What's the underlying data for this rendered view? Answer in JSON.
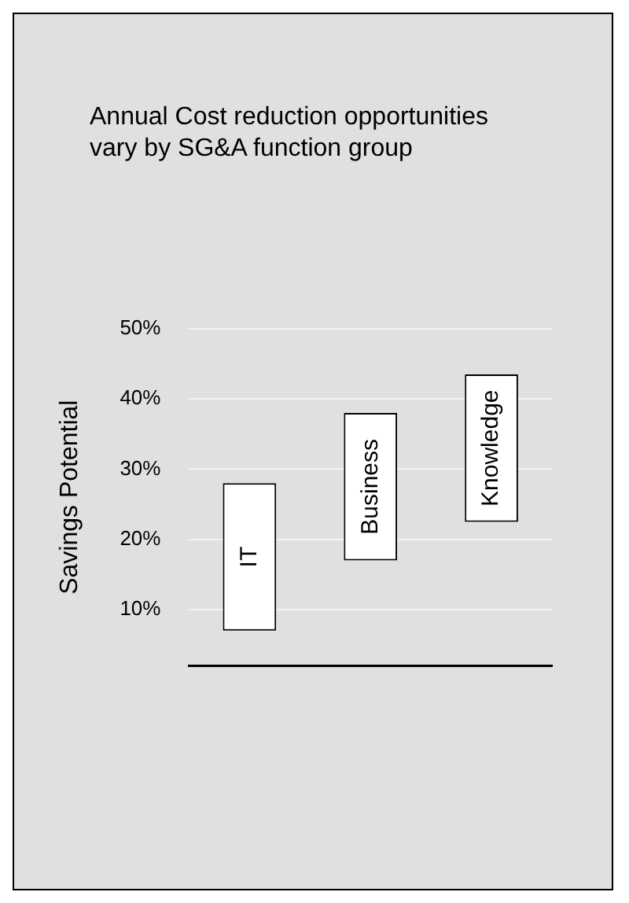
{
  "chart_data": {
    "type": "bar",
    "title": "Annual Cost reduction opportunities vary by SG&A function group",
    "ylabel": "Savings Potential",
    "categories": [
      "IT",
      "Business",
      "Knowledge"
    ],
    "base": [
      7,
      17,
      22.5
    ],
    "values": [
      21,
      21,
      21
    ],
    "color": "#ffffff",
    "ylim": [
      2,
      50
    ],
    "yticks": [
      {
        "value": 10,
        "label": "10%"
      },
      {
        "value": 20,
        "label": "20%"
      },
      {
        "value": 30,
        "label": "30%"
      },
      {
        "value": 40,
        "label": "40%"
      },
      {
        "value": 50,
        "label": "50%"
      }
    ],
    "grid": "y"
  }
}
